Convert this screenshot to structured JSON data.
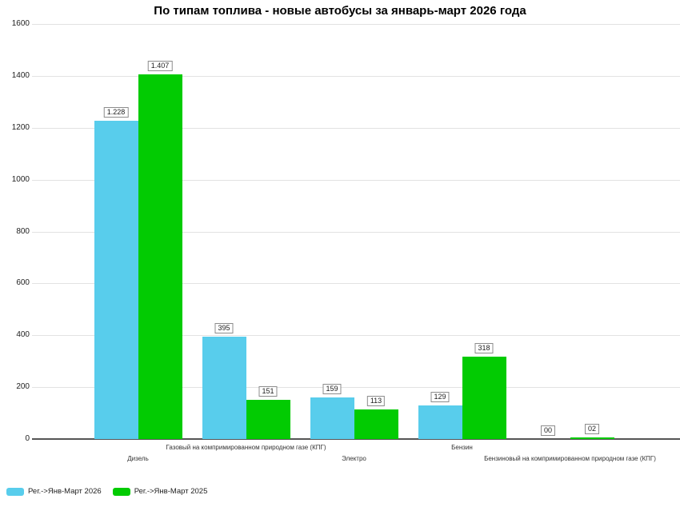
{
  "title": "По типам топлива - новые автобусы за январь-март 2026 года",
  "colors": {
    "series_2026": "#58CDEC",
    "series_2025": "#02CB02",
    "grid": "#E2E2E2",
    "axis_line": "#555555",
    "label_box_border": "#8C8C8C",
    "text": "#1D1D1D"
  },
  "chart_data": {
    "type": "bar",
    "title": "По типам топлива - новые автобусы за январь-март 2026 года",
    "categories": [
      "Дизель",
      "Газовый на компримированном природном газе (КПГ)",
      "Электро",
      "Бензин",
      "Бензиновый на компримированном природном газе (КПГ)"
    ],
    "series": [
      {
        "name": "Рег.->Янв-Март 2026",
        "color": "#58CDEC",
        "values": [
          1228,
          395,
          159,
          129,
          0
        ],
        "value_labels": [
          "1.228",
          "395",
          "159",
          "129",
          "00"
        ]
      },
      {
        "name": "Рег.->Янв-Март 2025",
        "color": "#02CB02",
        "values": [
          1407,
          151,
          113,
          318,
          2
        ],
        "value_labels": [
          "1.407",
          "151",
          "113",
          "318",
          "02"
        ]
      }
    ],
    "xlabel": "",
    "ylabel": "",
    "ylim": [
      0,
      1600
    ],
    "ytick_labels": [
      "0",
      "200",
      "400",
      "600",
      "800",
      "1000",
      "1200",
      "1400",
      "1600"
    ],
    "grid": true,
    "legend_position": "bottom-left",
    "category_label_rows": [
      2,
      1,
      2,
      1,
      2
    ]
  }
}
